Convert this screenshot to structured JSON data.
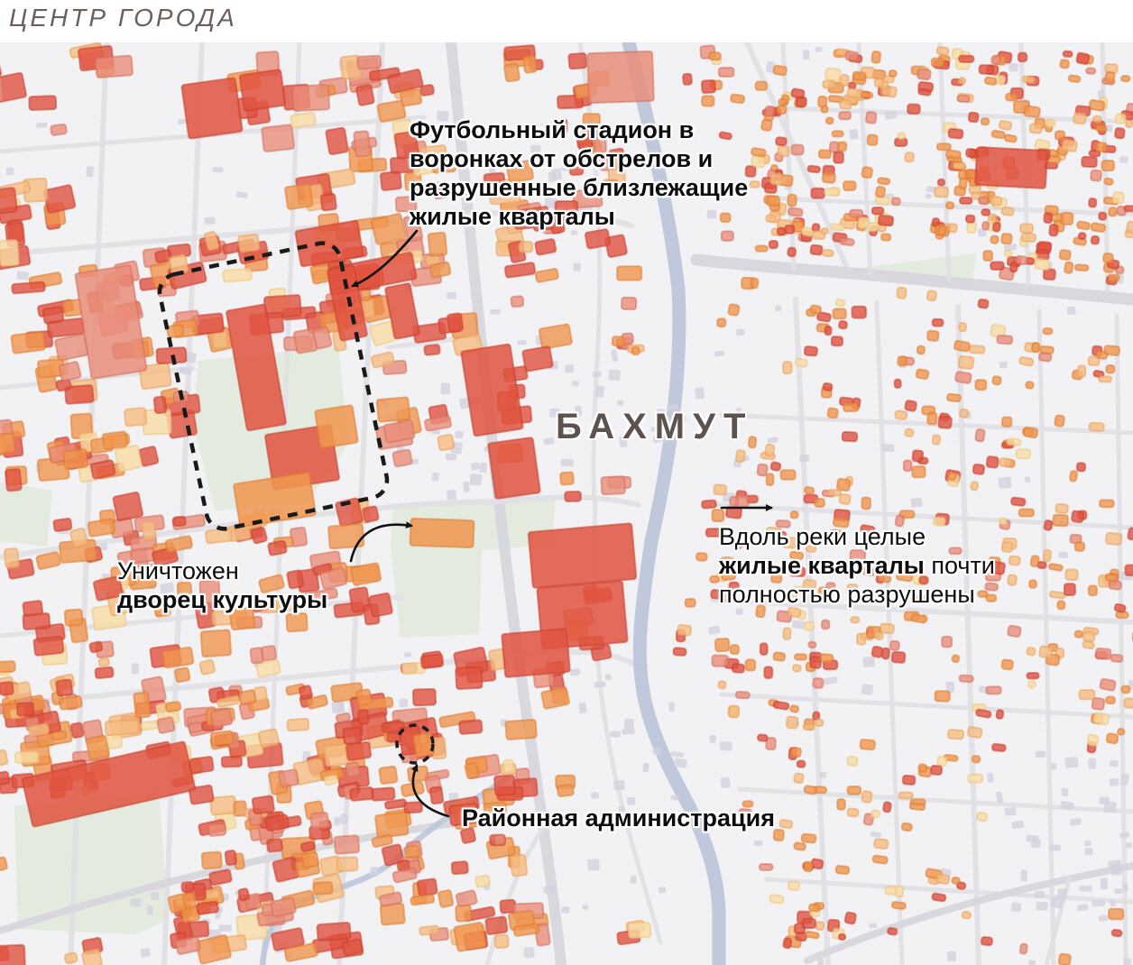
{
  "header": {
    "title": "ЦЕНТР ГОРОДА"
  },
  "map": {
    "city_label": "БАХМУТ",
    "annotations": {
      "stadium": {
        "line1": "Футбольный стадион в",
        "line2": "воронках от обстрелов и",
        "line3": "разрушенные близлежащие",
        "line4": "жилые кварталы"
      },
      "palace": {
        "line1": "Уничтожен",
        "line2": "дворец культуры"
      },
      "river": {
        "line1": "Вдоль реки целые",
        "line2_bold": "жилые кварталы",
        "line2_rest": " почти",
        "line3": "полностью разрушены"
      },
      "admin": {
        "label": "Районная администрация"
      }
    },
    "colors": {
      "background": "#f2f1f3",
      "dot_texture": "#e4e2e8",
      "park": "#e3eade",
      "river": "#b9c4d8",
      "road_minor": "#e0dfe5",
      "road_major": "#d7d6dc",
      "intact_building": "#d3d2de",
      "annotation_outline": "#1a1a1a",
      "arrow": "#111111",
      "city_label_color": "#5d534e",
      "title_color": "#6b615c",
      "damage_palette": [
        {
          "name": "destroyed-red",
          "fill": "#e05340",
          "stroke": "#c8402e"
        },
        {
          "name": "heavy-salmon",
          "fill": "#e98e7a",
          "stroke": "#d4705c"
        },
        {
          "name": "damaged-orange",
          "fill": "#f0964f",
          "stroke": "#dd7c30"
        },
        {
          "name": "light-orange",
          "fill": "#f5bd82",
          "stroke": "#e8a35c"
        },
        {
          "name": "minor-pale",
          "fill": "#f7dca4",
          "stroke": "#eec47c"
        }
      ]
    }
  }
}
